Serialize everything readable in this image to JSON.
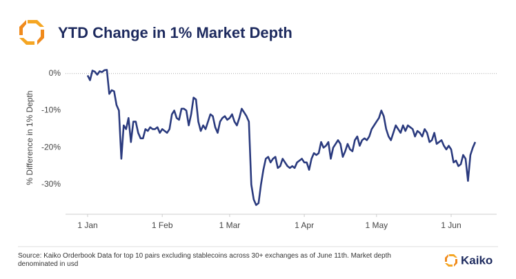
{
  "chart_data": {
    "type": "line",
    "title": "YTD Change in 1% Market Depth",
    "ylabel": "% Difference in 1% Depth",
    "categories": [
      "1 Jan",
      null,
      null,
      null,
      null,
      null,
      null,
      null,
      null,
      null,
      null,
      null,
      null,
      null,
      null,
      null,
      null,
      null,
      null,
      null,
      null,
      null,
      null,
      null,
      null,
      null,
      null,
      null,
      null,
      null,
      null,
      "1 Feb",
      null,
      null,
      null,
      null,
      null,
      null,
      null,
      null,
      null,
      null,
      null,
      null,
      null,
      null,
      null,
      null,
      null,
      null,
      null,
      null,
      null,
      null,
      null,
      null,
      null,
      null,
      null,
      "1 Mar",
      null,
      null,
      null,
      null,
      null,
      null,
      null,
      null,
      null,
      null,
      null,
      null,
      null,
      null,
      null,
      null,
      null,
      null,
      null,
      null,
      null,
      null,
      null,
      null,
      null,
      null,
      null,
      null,
      null,
      null,
      "1 Apr",
      null,
      null,
      null,
      null,
      null,
      null,
      null,
      null,
      null,
      null,
      null,
      null,
      null,
      null,
      null,
      null,
      null,
      null,
      null,
      null,
      null,
      null,
      null,
      null,
      null,
      null,
      null,
      null,
      null,
      "1 May",
      null,
      null,
      null,
      null,
      null,
      null,
      null,
      null,
      null,
      null,
      null,
      null,
      null,
      null,
      null,
      null,
      null,
      null,
      null,
      null,
      null,
      null,
      null,
      null,
      null,
      null,
      null,
      null,
      null,
      null,
      "1 Jun",
      null,
      null,
      null,
      null,
      null,
      null,
      null,
      null,
      null,
      null
    ],
    "values": [
      -0.5,
      -1.8,
      0.8,
      0.5,
      -0.3,
      0.6,
      0.4,
      0.9,
      1,
      -5.5,
      -4.5,
      -4.8,
      -8.5,
      -10,
      -23,
      -14,
      -15,
      -12,
      -18.5,
      -13,
      -13,
      -16,
      -17.5,
      -17.5,
      -15,
      -15.5,
      -14.5,
      -15,
      -15,
      -14.5,
      -16,
      -15,
      -15.5,
      -16,
      -15,
      -11,
      -10,
      -12,
      -12.5,
      -9.5,
      -9.5,
      -10,
      -14,
      -11,
      -6.5,
      -7,
      -13,
      -15.5,
      -14,
      -15,
      -13,
      -11,
      -11.5,
      -14.5,
      -16,
      -13,
      -12,
      -11.5,
      -12.5,
      -12,
      -11,
      -13,
      -14,
      -12,
      -9.5,
      -10.5,
      -11.5,
      -13,
      -30,
      -34,
      -35.5,
      -35,
      -30,
      -26,
      -23,
      -22.5,
      -24,
      -23,
      -22.5,
      -25.5,
      -25,
      -23,
      -24,
      -25,
      -25.5,
      -25,
      -25.5,
      -24,
      -23.5,
      -23,
      -24,
      -24,
      -26,
      -23,
      -21.5,
      -22,
      -21.5,
      -18.5,
      -20,
      -19.5,
      -18.5,
      -23,
      -20,
      -19,
      -18,
      -19,
      -22.5,
      -21,
      -19,
      -20.5,
      -21,
      -18,
      -17,
      -19.5,
      -18,
      -17.5,
      -18,
      -17,
      -15,
      -14,
      -13,
      -12,
      -10,
      -11.5,
      -15,
      -17,
      -18,
      -16,
      -14,
      -15,
      -16,
      -14,
      -15.5,
      -14,
      -14.5,
      -15,
      -17,
      -15.5,
      -16,
      -17,
      -15,
      -16,
      -18.5,
      -18,
      -16,
      -19,
      -18.5,
      -18,
      -19.5,
      -20.5,
      -19.5,
      -20.5,
      -24,
      -23.5,
      -25,
      -24.5,
      -22,
      -23,
      -29,
      -22,
      -20,
      -18.5
    ],
    "color": "#2a3a7e",
    "ylim": [
      -38,
      2
    ],
    "yticks": [
      {
        "value": 0,
        "label": "0%"
      },
      {
        "value": -10,
        "label": "-10%"
      },
      {
        "value": -20,
        "label": "-20%"
      },
      {
        "value": -30,
        "label": "-30%"
      }
    ],
    "zero_line": true,
    "grid": false
  },
  "source": "Source: Kaiko Orderbook Data for top 10 pairs excluding stablecoins across 30+ exchanges as of June 11th. Market depth denominated in usd",
  "brand": "Kaiko"
}
